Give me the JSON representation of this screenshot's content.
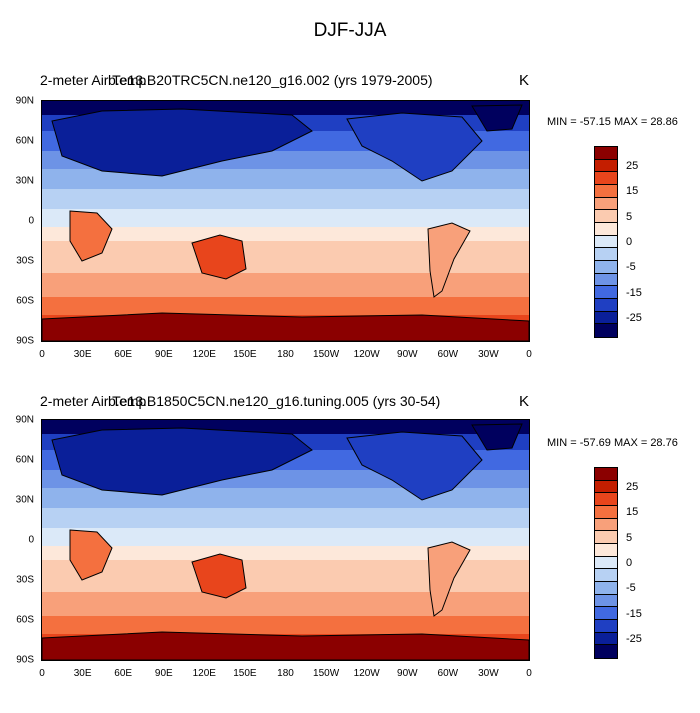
{
  "title": "DJF-JJA",
  "colorbar_levels": [
    "25",
    "15",
    "5",
    "0",
    "-5",
    "-15",
    "-25"
  ],
  "colorbar_colors": [
    "#8b0000",
    "#c41e00",
    "#e8451c",
    "#f4703f",
    "#f8a07a",
    "#fbcbb0",
    "#fde8da",
    "#dbe9f8",
    "#b7d1f3",
    "#8fb3ec",
    "#6d93e6",
    "#4169e1",
    "#1f3fc2",
    "#0a1f99",
    "#00005e"
  ],
  "axis": {
    "lat_ticks": [
      "90N",
      "60N",
      "30N",
      "0",
      "30S",
      "60S",
      "90S"
    ],
    "lon_ticks": [
      "0",
      "30E",
      "60E",
      "90E",
      "120E",
      "150E",
      "180",
      "150W",
      "120W",
      "90W",
      "60W",
      "30W",
      "0"
    ]
  },
  "panels": [
    {
      "variable": "2-meter Air Temp",
      "case": "b.e13.B20TRC5CN.ne120_g16.002 (yrs 1979-2005)",
      "units": "K",
      "min_label": "MIN = -57.15 MAX =  28.86",
      "min": -57.15,
      "max": 28.86
    },
    {
      "variable": "2-meter Air Temp",
      "case": "b.e13.B1850C5CN.ne120_g16.tuning.005 (yrs 30-54)",
      "units": "K",
      "min_label": "MIN = -57.69 MAX =  28.76",
      "min": -57.69,
      "max": 28.76
    }
  ]
}
